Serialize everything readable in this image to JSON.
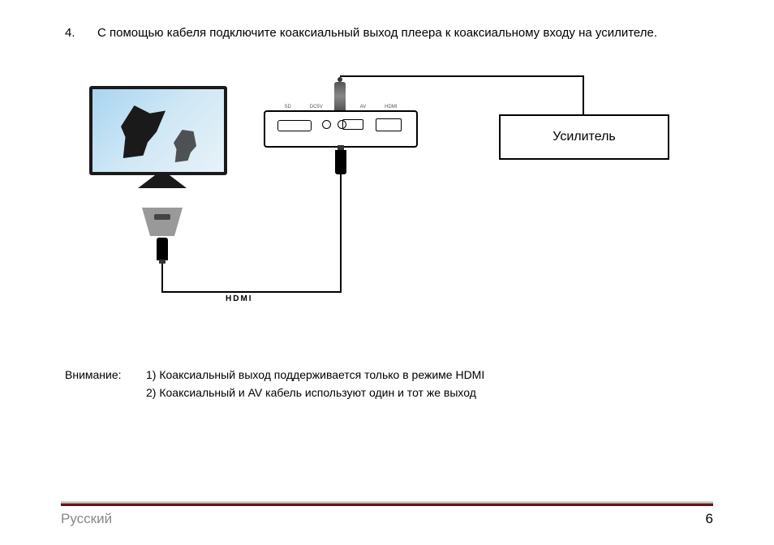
{
  "instruction": {
    "number": "4.",
    "text": "С помощью кабеля подключите коаксиальный выход плеера к коаксиальному входу на усилителе."
  },
  "diagram": {
    "amplifier_label": "Усилитель",
    "hdmi_label": "HDMI",
    "colors": {
      "tv_bezel": "#1a1a1a",
      "wire": "#000000",
      "screen_gradient_from": "#a8d5f0",
      "screen_gradient_to": "#e8f2f8",
      "hdmi_port": "#999999"
    }
  },
  "notes": {
    "label": "Внимание:",
    "items": [
      "1) Коаксиальный выход поддерживается только в режиме HDMI",
      "2) Коаксиальный и AV кабель используют один и тот же выход"
    ]
  },
  "footer": {
    "language": "Русский",
    "page": "6",
    "line_color": "#6b1414"
  }
}
